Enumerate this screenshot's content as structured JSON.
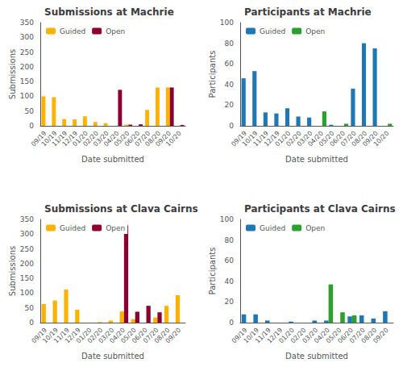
{
  "chart_data": [
    {
      "type": "bar",
      "title": "Submissions at Machrie",
      "xlabel": "Date submitted",
      "ylabel": "Submissions",
      "categories": [
        "09/19",
        "10/19",
        "11/19",
        "12/19",
        "01/20",
        "02/20",
        "03/20",
        "04/20",
        "05/20",
        "06/20",
        "07/20",
        "08/20",
        "09/20",
        "10/20"
      ],
      "series": [
        {
          "name": "Guided",
          "color": "#FFB300",
          "values": [
            100,
            97,
            23,
            22,
            32,
            13,
            9,
            0,
            4,
            0,
            54,
            130,
            130,
            0
          ]
        },
        {
          "name": "Open",
          "color": "#8B0030",
          "values": [
            0,
            0,
            0,
            0,
            0,
            0,
            0,
            122,
            4,
            5,
            0,
            0,
            130,
            3
          ]
        }
      ],
      "ylim": [
        0,
        350
      ],
      "yticks": [
        0,
        50,
        100,
        150,
        200,
        250,
        300,
        350
      ],
      "grid": false,
      "legend": "upper left"
    },
    {
      "type": "bar",
      "title": "Participants at Machrie",
      "xlabel": "Date submitted",
      "ylabel": "Participants",
      "categories": [
        "09/19",
        "10/19",
        "11/19",
        "12/19",
        "01/20",
        "02/20",
        "03/20",
        "04/20",
        "05/20",
        "06/20",
        "07/20",
        "08/20",
        "09/20",
        "10/20"
      ],
      "series": [
        {
          "name": "Guided",
          "color": "#1F77B4",
          "values": [
            46,
            53,
            13,
            12,
            17,
            9,
            8,
            0,
            1,
            0,
            36,
            80,
            75,
            0
          ]
        },
        {
          "name": "Open",
          "color": "#2CA02C",
          "values": [
            0,
            0,
            0,
            0,
            0,
            0,
            0,
            14,
            0,
            2,
            0,
            0,
            0,
            2
          ]
        }
      ],
      "ylim": [
        0,
        100
      ],
      "yticks": [
        0,
        20,
        40,
        60,
        80,
        100
      ],
      "grid": false,
      "legend": "upper left"
    },
    {
      "type": "bar",
      "title": "Submissions at Clava Cairns",
      "xlabel": "Date submitted",
      "ylabel": "Submissions",
      "categories": [
        "09/19",
        "10/19",
        "11/19",
        "12/19",
        "01/20",
        "02/20",
        "03/20",
        "04/20",
        "05/20",
        "06/20",
        "07/20",
        "08/20",
        "09/20"
      ],
      "series": [
        {
          "name": "Guided",
          "color": "#FFB300",
          "values": [
            63,
            75,
            112,
            44,
            0,
            2,
            7,
            38,
            12,
            0,
            17,
            57,
            93
          ]
        },
        {
          "name": "Open",
          "color": "#8B0030",
          "values": [
            0,
            0,
            0,
            0,
            0,
            0,
            0,
            330,
            37,
            57,
            35,
            0,
            0
          ]
        }
      ],
      "ylim": [
        0,
        350
      ],
      "yticks": [
        0,
        50,
        100,
        150,
        200,
        250,
        300,
        350
      ],
      "grid": false,
      "legend": "upper left"
    },
    {
      "type": "bar",
      "title": "Participants at Clava Cairns",
      "xlabel": "Date submitted",
      "ylabel": "Participants",
      "categories": [
        "09/19",
        "10/19",
        "11/19",
        "12/19",
        "01/20",
        "02/20",
        "03/20",
        "04/20",
        "05/20",
        "06/20",
        "07/20",
        "08/20",
        "09/20"
      ],
      "series": [
        {
          "name": "Guided",
          "color": "#1F77B4",
          "values": [
            8,
            8,
            2,
            0,
            1,
            0,
            2,
            2,
            0,
            6,
            7,
            4,
            11
          ]
        },
        {
          "name": "Open",
          "color": "#2CA02C",
          "values": [
            0,
            0,
            0,
            0,
            0,
            0,
            0,
            37,
            10,
            7,
            0,
            0,
            0
          ]
        }
      ],
      "ylim": [
        0,
        100
      ],
      "yticks": [
        0,
        20,
        40,
        60,
        80,
        100
      ],
      "grid": false,
      "legend": "upper left"
    }
  ]
}
